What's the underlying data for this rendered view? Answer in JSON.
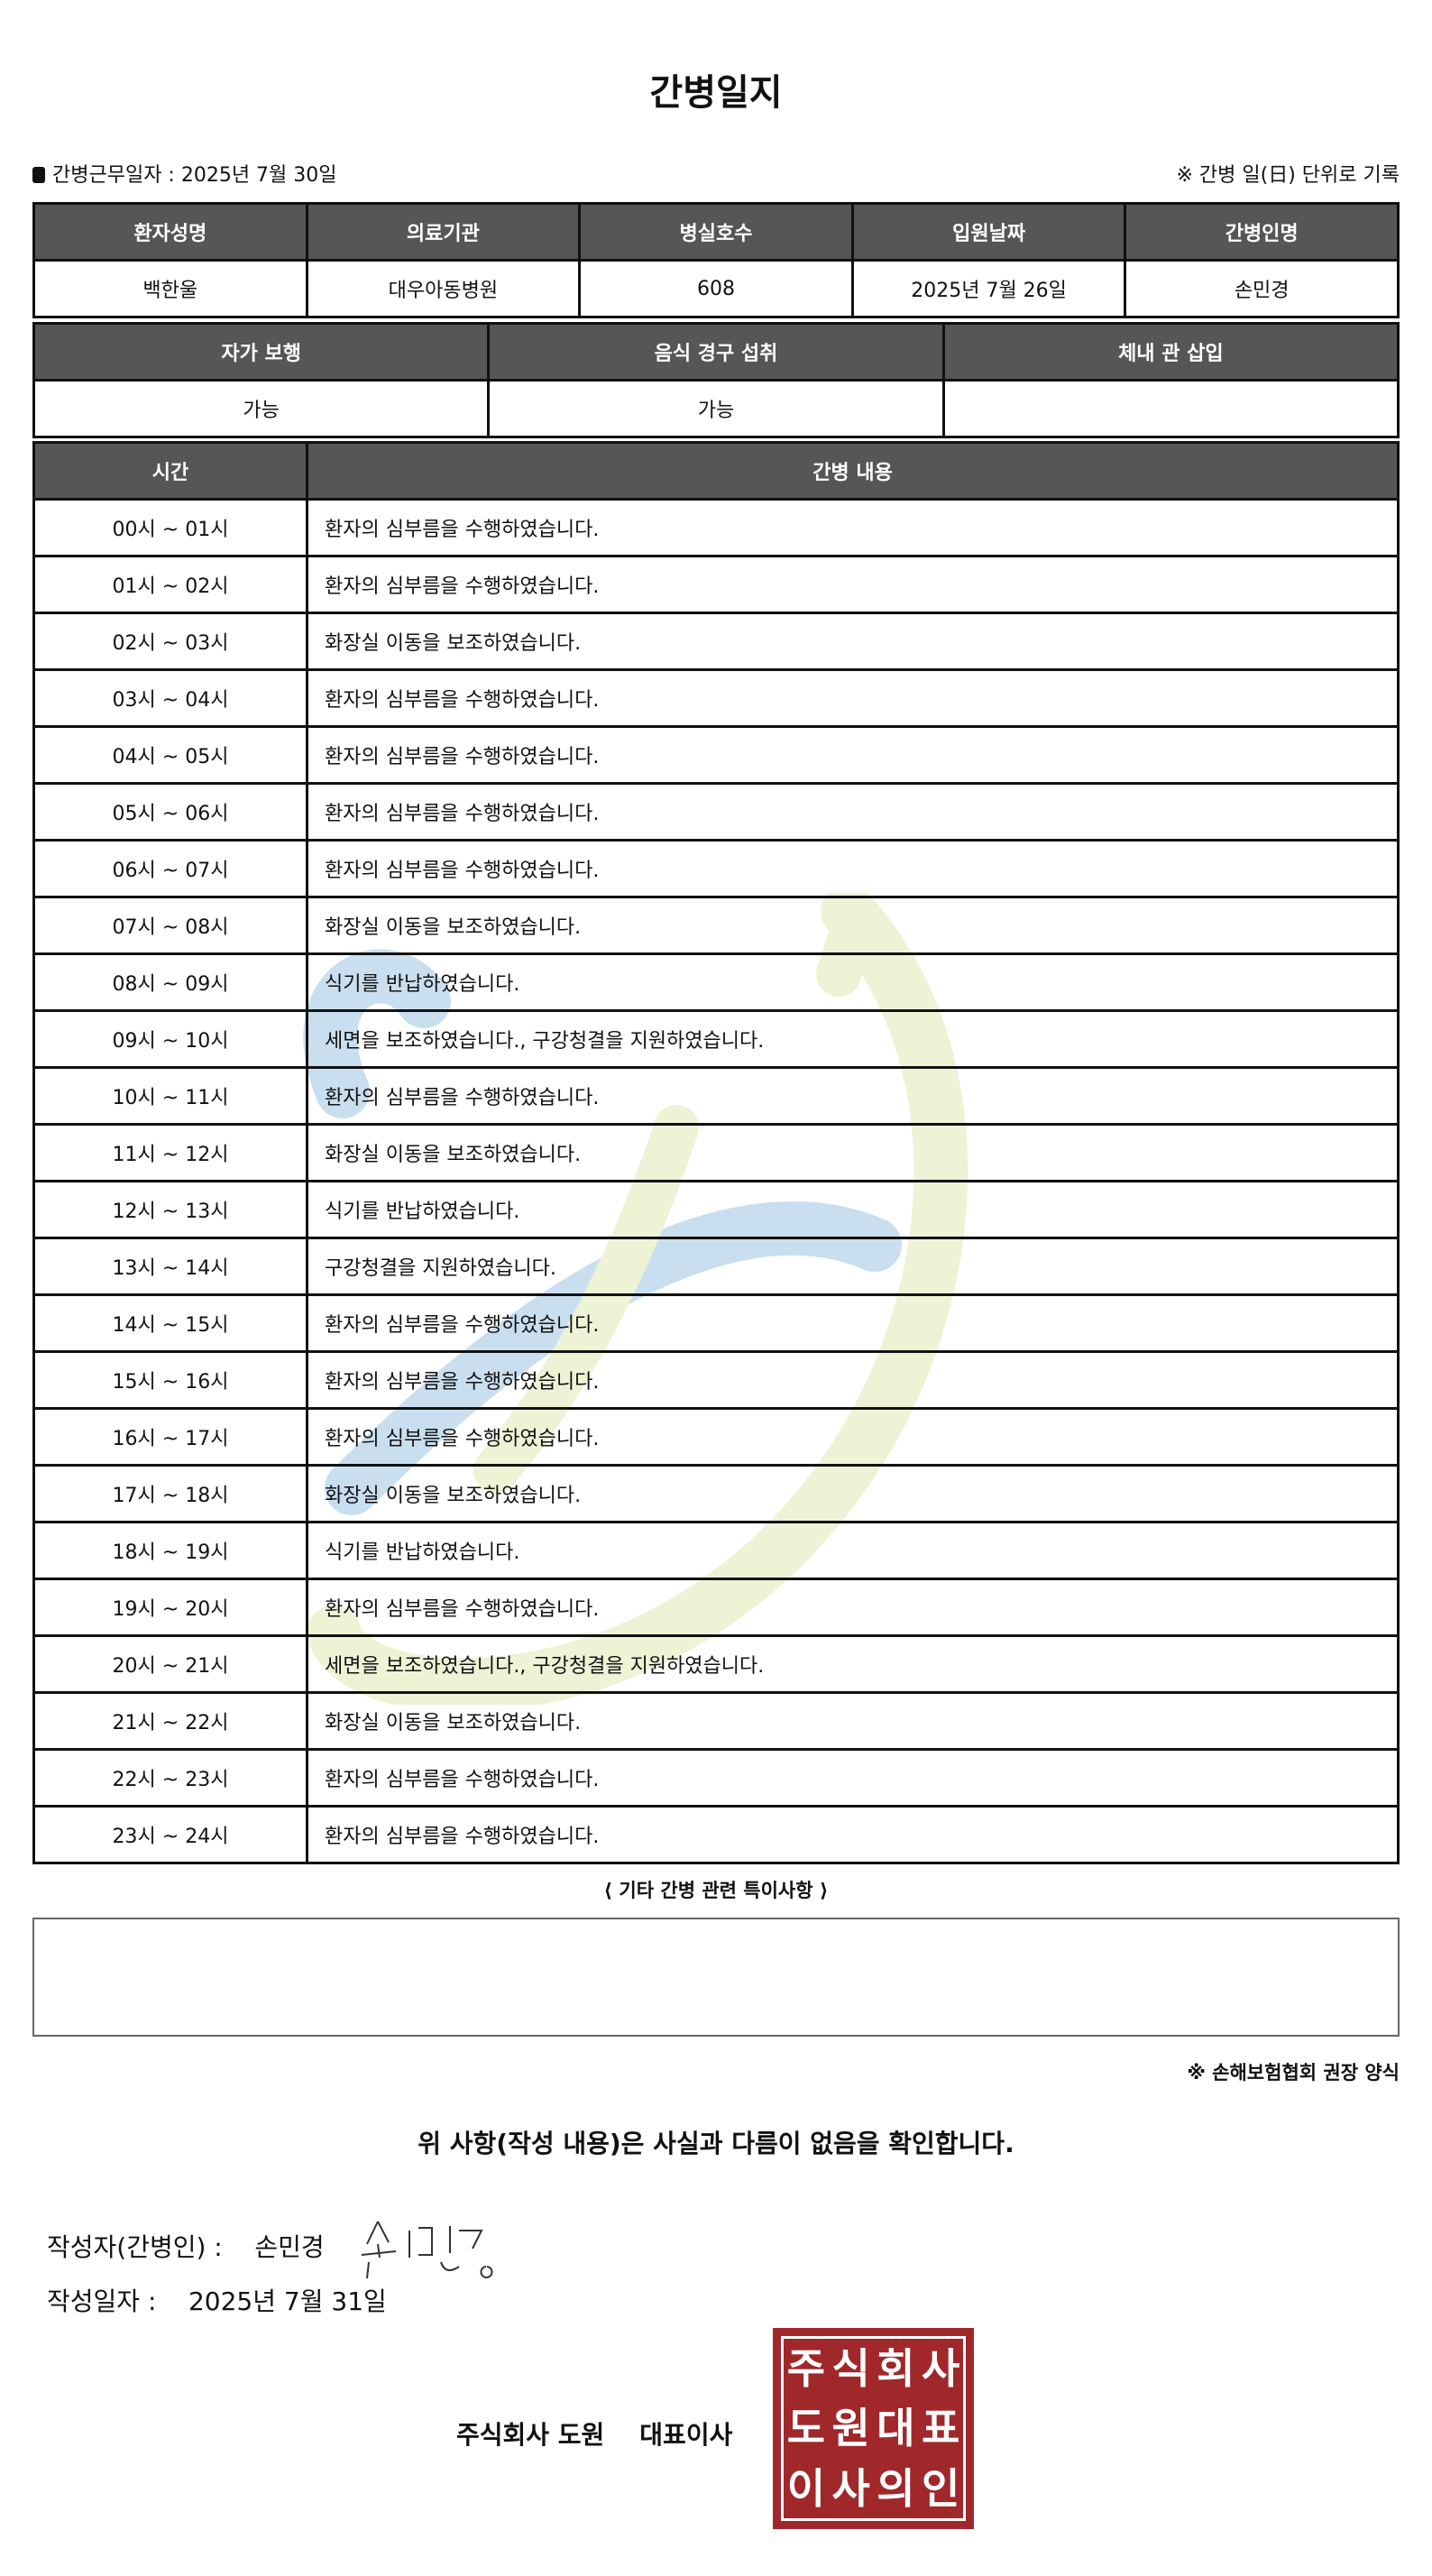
{
  "title": "간병일지",
  "work_date_label": "간병근무일자  :  2025년 7월 30일",
  "record_note": "※ 간병 일(日) 단위로 기록",
  "info": {
    "headers": [
      "환자성명",
      "의료기관",
      "병실호수",
      "입원날짜",
      "간병인명"
    ],
    "values": [
      "백한울",
      "대우아동병원",
      "608",
      "2025년 7월 26일",
      "손민경"
    ]
  },
  "status": {
    "headers": [
      "자가 보행",
      "음식 경구 섭취",
      "체내 관 삽입"
    ],
    "values": [
      "가능",
      "가능",
      ""
    ]
  },
  "log": {
    "headers": [
      "시간",
      "간병 내용"
    ],
    "rows": [
      [
        "00시 ~ 01시",
        "환자의 심부름을 수행하였습니다."
      ],
      [
        "01시 ~ 02시",
        "환자의 심부름을 수행하였습니다."
      ],
      [
        "02시 ~ 03시",
        "화장실 이동을 보조하였습니다."
      ],
      [
        "03시 ~ 04시",
        "환자의 심부름을 수행하였습니다."
      ],
      [
        "04시 ~ 05시",
        "환자의 심부름을 수행하였습니다."
      ],
      [
        "05시 ~ 06시",
        "환자의 심부름을 수행하였습니다."
      ],
      [
        "06시 ~ 07시",
        "환자의 심부름을 수행하였습니다."
      ],
      [
        "07시 ~ 08시",
        "화장실 이동을 보조하였습니다."
      ],
      [
        "08시 ~ 09시",
        "식기를 반납하였습니다."
      ],
      [
        "09시 ~ 10시",
        "세면을 보조하였습니다., 구강청결을 지원하였습니다."
      ],
      [
        "10시 ~ 11시",
        "환자의 심부름을 수행하였습니다."
      ],
      [
        "11시 ~ 12시",
        "화장실 이동을 보조하였습니다."
      ],
      [
        "12시 ~ 13시",
        "식기를 반납하였습니다."
      ],
      [
        "13시 ~ 14시",
        "구강청결을 지원하였습니다."
      ],
      [
        "14시 ~ 15시",
        "환자의 심부름을 수행하였습니다."
      ],
      [
        "15시 ~ 16시",
        "환자의 심부름을 수행하였습니다."
      ],
      [
        "16시 ~ 17시",
        "환자의 심부름을 수행하였습니다."
      ],
      [
        "17시 ~ 18시",
        "화장실 이동을 보조하였습니다."
      ],
      [
        "18시 ~ 19시",
        "식기를 반납하였습니다."
      ],
      [
        "19시 ~ 20시",
        "환자의 심부름을 수행하였습니다."
      ],
      [
        "20시 ~ 21시",
        "세면을 보조하였습니다., 구강청결을 지원하였습니다."
      ],
      [
        "21시 ~ 22시",
        "화장실 이동을 보조하였습니다."
      ],
      [
        "22시 ~ 23시",
        "환자의 심부름을 수행하였습니다."
      ],
      [
        "23시 ~ 24시",
        "환자의 심부름을 수행하였습니다."
      ]
    ]
  },
  "notes_title": "⟨ 기타 간병 관련 특이사항 ⟩",
  "notes_value": "",
  "association_note": "※ 손해보험협회 권장 양식",
  "confirm_text": "위 사항(작성 내용)은 사실과 다름이 없음을 확인합니다.",
  "writer_label": "작성자(간병인) :",
  "writer_name": "손민경",
  "written_date_label": "작성일자 :",
  "written_date": "2025년 7월 31일",
  "company": "주식회사 도원    대표이사",
  "stamp_text": "주식회사도원대표이사의인",
  "colors": {
    "header_bg": "#565656",
    "stamp": "#a0282a",
    "watermark_blue": "#c9dff0",
    "watermark_green": "#eef3d6"
  }
}
